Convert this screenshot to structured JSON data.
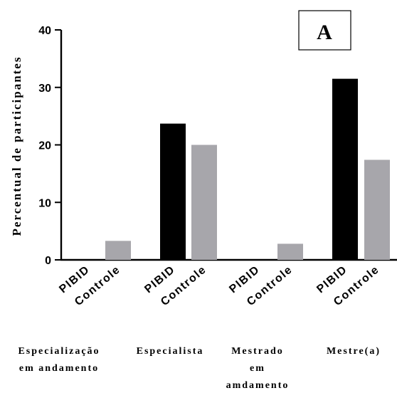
{
  "chart_data": {
    "type": "bar",
    "ylabel": "Percentual de participantes",
    "ylim": [
      0,
      40
    ],
    "yticks": [
      "0",
      "10",
      "20",
      "30",
      "40"
    ],
    "panel_label": "A",
    "groups": [
      {
        "label_lines": [
          "Especialização",
          "em andamento"
        ]
      },
      {
        "label_lines": [
          "Especialista"
        ]
      },
      {
        "label_lines": [
          "Mestrado",
          "em",
          "amdamento"
        ]
      },
      {
        "label_lines": [
          "Mestre(a)"
        ]
      }
    ],
    "series": [
      {
        "name": "PIBID",
        "color": "#000000",
        "values": [
          0,
          23.7,
          0,
          31.5
        ]
      },
      {
        "name": "Controle",
        "color": "#a7a6ab",
        "values": [
          3.3,
          20.0,
          2.8,
          17.4
        ]
      }
    ],
    "bar_labels": [
      "PIBID",
      "Controle"
    ]
  }
}
